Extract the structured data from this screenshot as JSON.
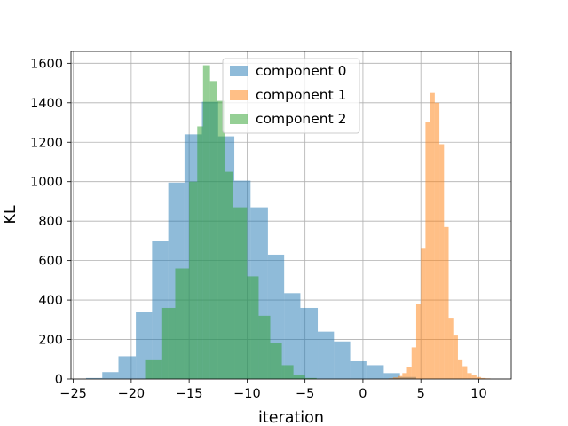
{
  "chart_data": {
    "type": "histogram",
    "title": "",
    "xlabel": "iteration",
    "ylabel": "KL",
    "xlim": [
      -25.2,
      12.8
    ],
    "ylim": [
      0,
      1660
    ],
    "xticks": [
      -25,
      -20,
      -15,
      -10,
      -5,
      0,
      5,
      10
    ],
    "xtick_labels": [
      "−25",
      "−20",
      "−15",
      "−10",
      "−5",
      "0",
      "5",
      "10"
    ],
    "yticks": [
      0,
      200,
      400,
      600,
      800,
      1000,
      1200,
      1400,
      1600
    ],
    "ytick_labels": [
      "0",
      "200",
      "400",
      "600",
      "800",
      "1000",
      "1200",
      "1400",
      "1600"
    ],
    "grid": true,
    "legend_position": "top-center",
    "series": [
      {
        "name": "component 0",
        "color": "#1f77b4",
        "alpha": 0.5,
        "bins": [
          {
            "x0": -23.9,
            "x1": -22.5,
            "count": 5
          },
          {
            "x0": -22.5,
            "x1": -21.1,
            "count": 35
          },
          {
            "x0": -21.1,
            "x1": -19.6,
            "count": 115
          },
          {
            "x0": -19.6,
            "x1": -18.2,
            "count": 340
          },
          {
            "x0": -18.2,
            "x1": -16.8,
            "count": 700
          },
          {
            "x0": -16.8,
            "x1": -15.4,
            "count": 995
          },
          {
            "x0": -15.4,
            "x1": -13.9,
            "count": 1240
          },
          {
            "x0": -13.9,
            "x1": -12.5,
            "count": 1405
          },
          {
            "x0": -12.5,
            "x1": -11.1,
            "count": 1230
          },
          {
            "x0": -11.1,
            "x1": -9.7,
            "count": 1005
          },
          {
            "x0": -9.7,
            "x1": -8.2,
            "count": 870
          },
          {
            "x0": -8.2,
            "x1": -6.8,
            "count": 630
          },
          {
            "x0": -6.8,
            "x1": -5.4,
            "count": 435
          },
          {
            "x0": -5.4,
            "x1": -3.9,
            "count": 360
          },
          {
            "x0": -3.9,
            "x1": -2.5,
            "count": 240
          },
          {
            "x0": -2.5,
            "x1": -1.1,
            "count": 190
          },
          {
            "x0": -1.1,
            "x1": 0.3,
            "count": 90
          },
          {
            "x0": 0.3,
            "x1": 1.8,
            "count": 70
          },
          {
            "x0": 1.8,
            "x1": 3.2,
            "count": 30
          },
          {
            "x0": 3.2,
            "x1": 4.6,
            "count": 10
          }
        ]
      },
      {
        "name": "component 1",
        "color": "#ff7f0e",
        "alpha": 0.5,
        "bins": [
          {
            "x0": 2.2,
            "x1": 2.6,
            "count": 3
          },
          {
            "x0": 2.6,
            "x1": 3.0,
            "count": 8
          },
          {
            "x0": 3.0,
            "x1": 3.4,
            "count": 15
          },
          {
            "x0": 3.4,
            "x1": 3.8,
            "count": 30
          },
          {
            "x0": 3.8,
            "x1": 4.2,
            "count": 60
          },
          {
            "x0": 4.2,
            "x1": 4.6,
            "count": 160
          },
          {
            "x0": 4.6,
            "x1": 5.0,
            "count": 380
          },
          {
            "x0": 5.0,
            "x1": 5.4,
            "count": 660
          },
          {
            "x0": 5.4,
            "x1": 5.8,
            "count": 1300
          },
          {
            "x0": 5.8,
            "x1": 6.2,
            "count": 1450
          },
          {
            "x0": 6.2,
            "x1": 6.6,
            "count": 1400
          },
          {
            "x0": 6.6,
            "x1": 7.0,
            "count": 1190
          },
          {
            "x0": 7.0,
            "x1": 7.4,
            "count": 770
          },
          {
            "x0": 7.4,
            "x1": 7.8,
            "count": 310
          },
          {
            "x0": 7.8,
            "x1": 8.2,
            "count": 220
          },
          {
            "x0": 8.2,
            "x1": 8.6,
            "count": 95
          },
          {
            "x0": 8.6,
            "x1": 9.0,
            "count": 65
          },
          {
            "x0": 9.0,
            "x1": 9.4,
            "count": 30
          },
          {
            "x0": 9.4,
            "x1": 9.8,
            "count": 22
          },
          {
            "x0": 9.8,
            "x1": 10.2,
            "count": 10
          },
          {
            "x0": 10.2,
            "x1": 10.6,
            "count": 5
          },
          {
            "x0": 10.6,
            "x1": 11.0,
            "count": 3
          }
        ]
      },
      {
        "name": "component 2",
        "color": "#2ca02c",
        "alpha": 0.5,
        "bins": [
          {
            "x0": -18.8,
            "x1": -17.4,
            "count": 95
          },
          {
            "x0": -17.4,
            "x1": -16.2,
            "count": 360
          },
          {
            "x0": -16.2,
            "x1": -15.0,
            "count": 560
          },
          {
            "x0": -15.0,
            "x1": -14.3,
            "count": 1000
          },
          {
            "x0": -14.3,
            "x1": -13.8,
            "count": 1280
          },
          {
            "x0": -13.8,
            "x1": -13.2,
            "count": 1590
          },
          {
            "x0": -13.2,
            "x1": -12.6,
            "count": 1510
          },
          {
            "x0": -12.6,
            "x1": -11.9,
            "count": 1410
          },
          {
            "x0": -11.9,
            "x1": -11.2,
            "count": 1050
          },
          {
            "x0": -11.2,
            "x1": -10.0,
            "count": 870
          },
          {
            "x0": -10.0,
            "x1": -9.0,
            "count": 520
          },
          {
            "x0": -9.0,
            "x1": -8.0,
            "count": 320
          },
          {
            "x0": -8.0,
            "x1": -7.0,
            "count": 180
          },
          {
            "x0": -7.0,
            "x1": -6.0,
            "count": 70
          },
          {
            "x0": -6.0,
            "x1": -5.0,
            "count": 20
          },
          {
            "x0": -5.0,
            "x1": -4.0,
            "count": 5
          }
        ]
      }
    ]
  }
}
